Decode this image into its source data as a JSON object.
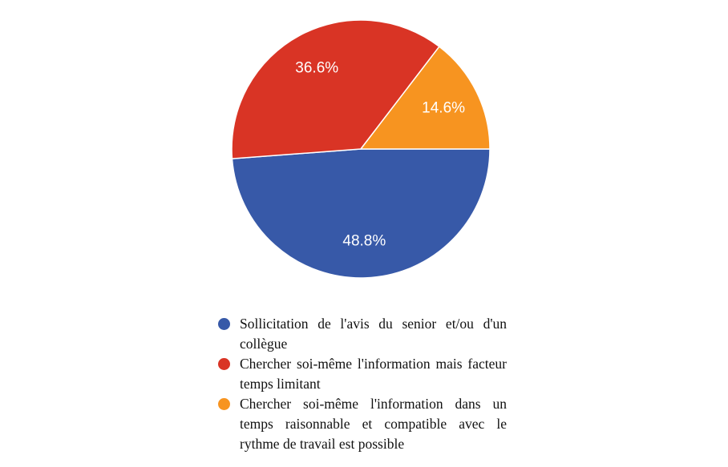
{
  "chart_data": {
    "type": "pie",
    "slices": [
      {
        "label": "Sollicitation de l'avis du senior et/ou d'un collègue",
        "value": 48.8,
        "display": "48.8%",
        "color": "#3759a8"
      },
      {
        "label": "Chercher soi-même l'information mais facteur temps limitant",
        "value": 36.6,
        "display": "36.6%",
        "color": "#d93425"
      },
      {
        "label": "Chercher soi-même l'information dans un temps raisonnable et compatible avec le rythme de travail est possible",
        "value": 14.6,
        "display": "14.6%",
        "color": "#f79420"
      }
    ],
    "start": "3 o'clock",
    "direction": "clockwise",
    "legend_position": "bottom"
  }
}
